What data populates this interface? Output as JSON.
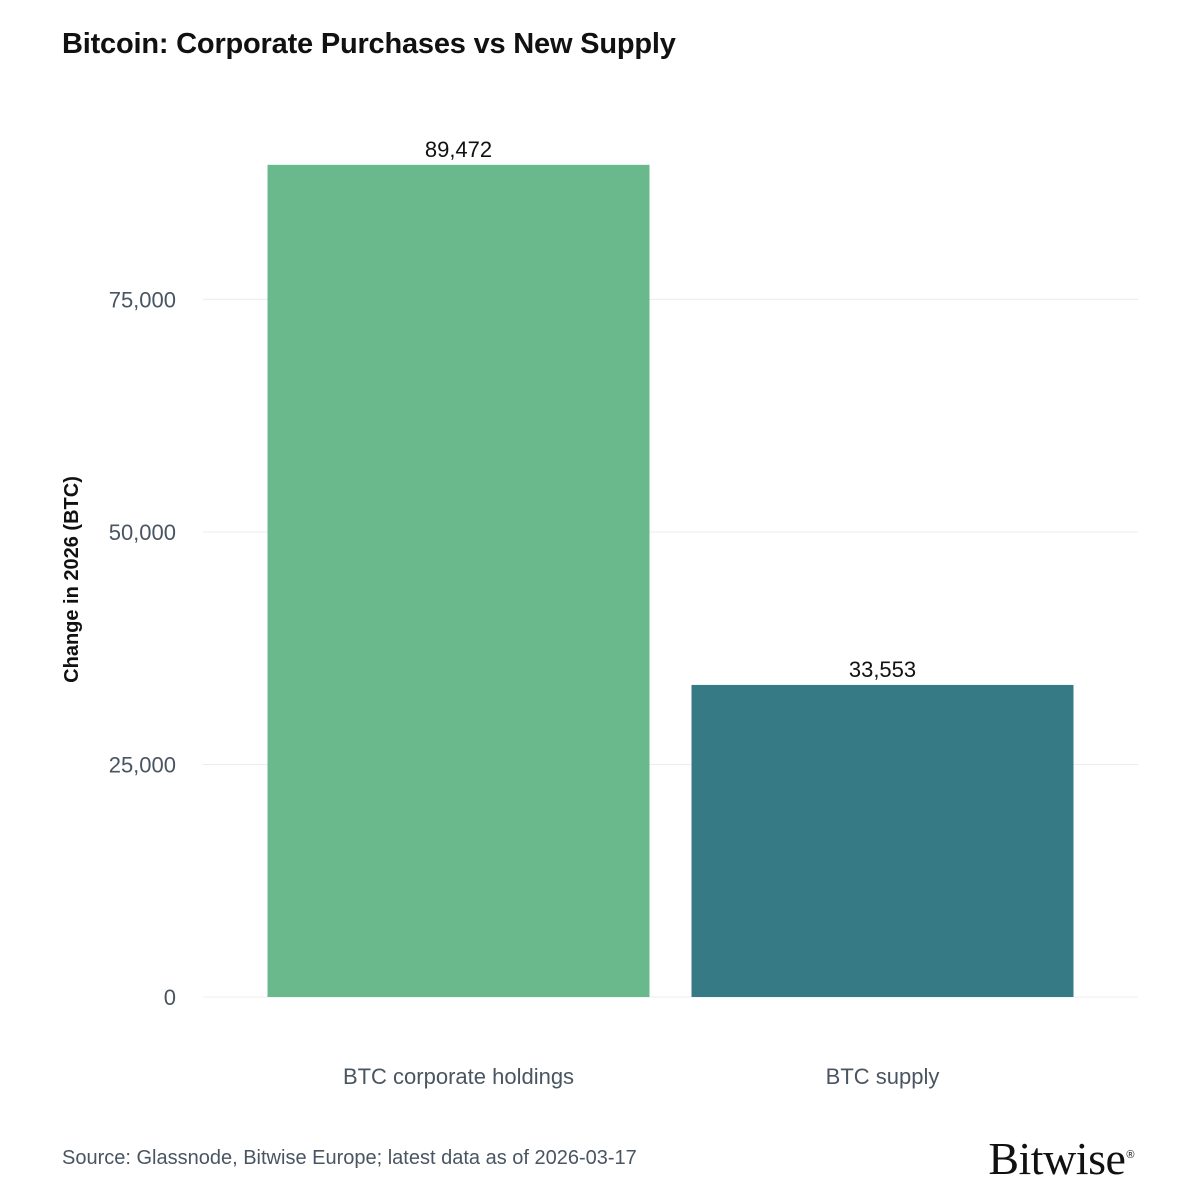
{
  "page": {
    "title": "Bitcoin: Corporate Purchases vs New Supply",
    "source": "Source: Glassnode, Bitwise Europe; latest data as of 2026-03-17",
    "logo_text": "Bitwise",
    "logo_mark": "®"
  },
  "chart_data": {
    "type": "bar",
    "title": "Bitcoin: Corporate Purchases vs New Supply",
    "xlabel": "",
    "ylabel": "Change in 2026 (BTC)",
    "categories": [
      "BTC corporate holdings",
      "BTC supply"
    ],
    "values": [
      89472,
      33553
    ],
    "value_labels": [
      "89,472",
      "33,553"
    ],
    "colors": [
      "#69b98c",
      "#357a84"
    ],
    "ylim": [
      0,
      93000
    ],
    "yticks": [
      0,
      25000,
      50000,
      75000
    ],
    "ytick_labels": [
      "0",
      "25,000",
      "50,000",
      "75,000"
    ],
    "grid": true,
    "legend": "none"
  }
}
